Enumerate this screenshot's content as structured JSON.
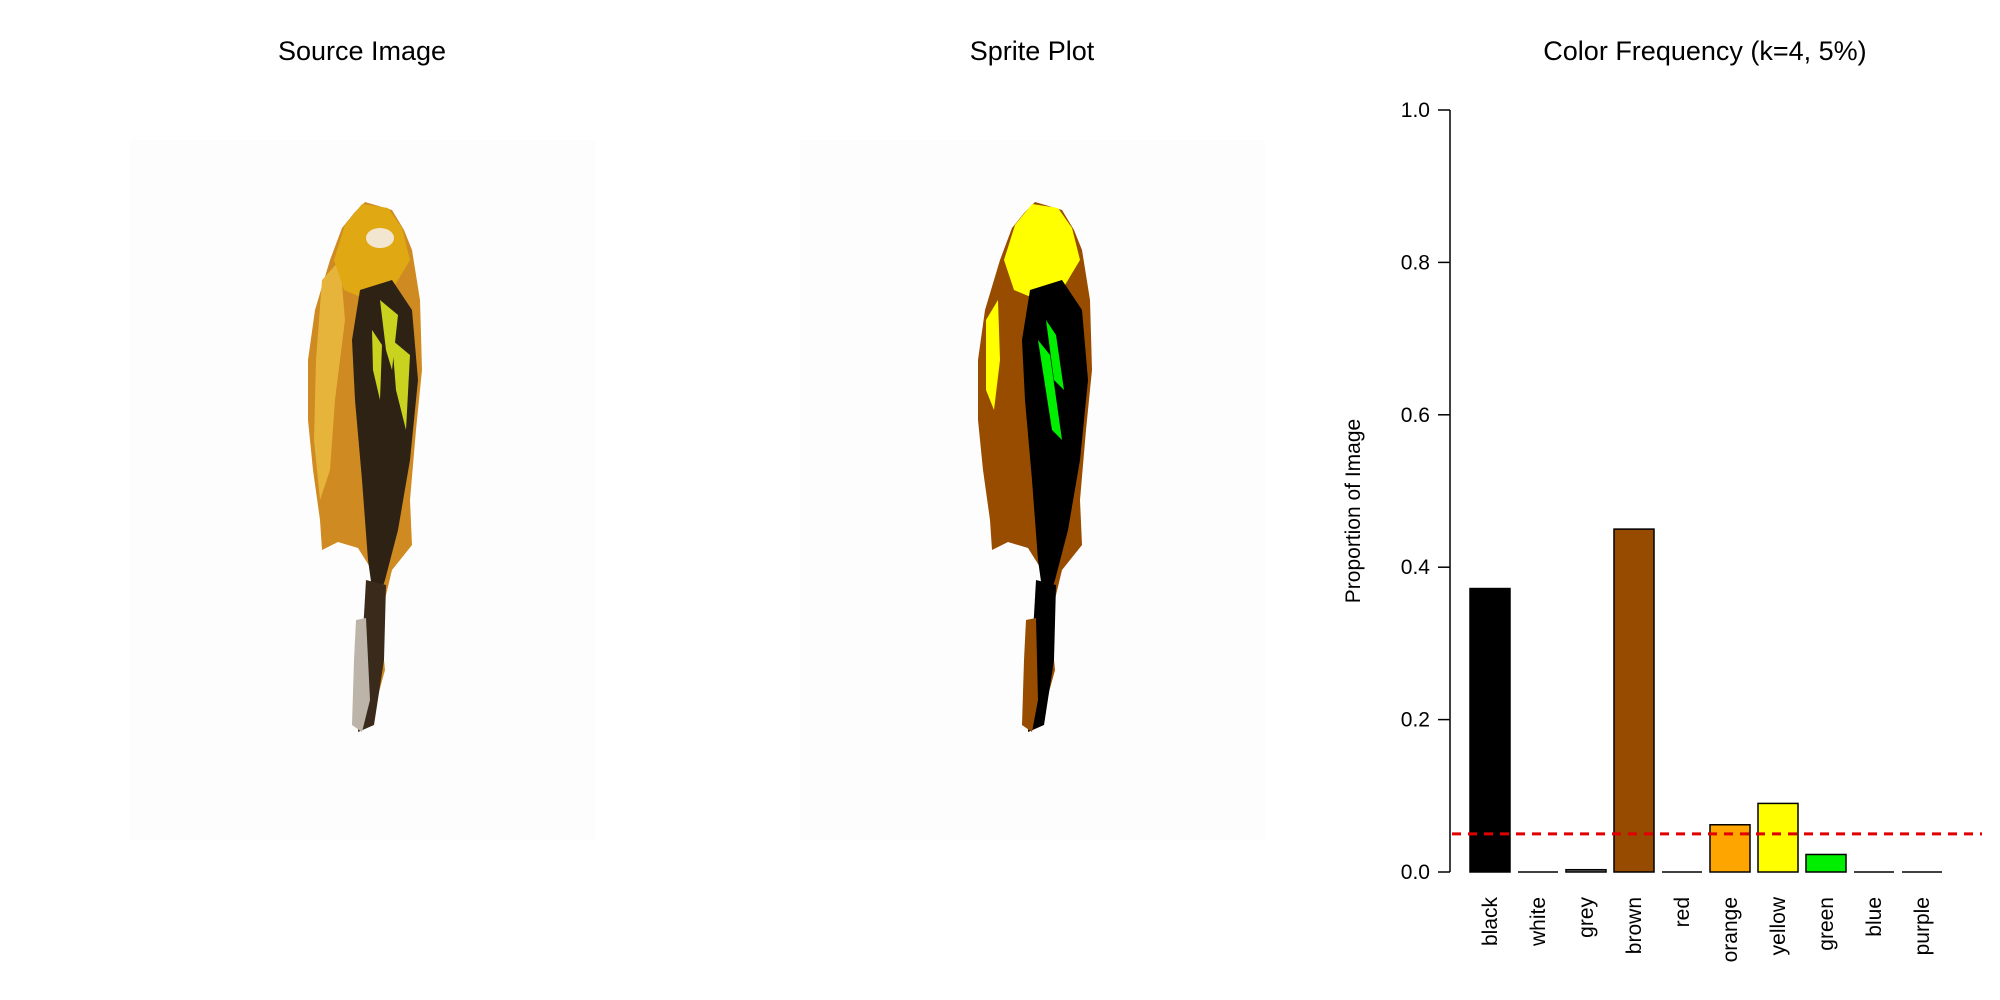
{
  "panels": {
    "source_title": "Source Image",
    "sprite_title": "Sprite Plot"
  },
  "source_palette": {
    "head": "#e0a914",
    "eye": "#f2e6d0",
    "breast": "#cf8a22",
    "breast_light": "#e6b43a",
    "wing": "#2e2214",
    "wing_streak": "#c9d21e",
    "tail": "#3a2a1c",
    "tail_light": "#bcb4a8"
  },
  "sprite_palette": {
    "head": "#ffff00",
    "breast": "#974c00",
    "wing": "#000000",
    "wing_streak": "#00ee00",
    "highlight": "#ffff00"
  },
  "chart_data": {
    "type": "bar",
    "title": "Color Frequency (k=4, 5%)",
    "ylabel": "Proportion of Image",
    "xlabel": "",
    "ylim": [
      0,
      1.0
    ],
    "yticks": [
      "0.0",
      "0.2",
      "0.4",
      "0.6",
      "0.8",
      "1.0"
    ],
    "threshold": 0.05,
    "threshold_color": "#e00000",
    "categories": [
      "black",
      "white",
      "grey",
      "brown",
      "red",
      "orange",
      "yellow",
      "green",
      "blue",
      "purple"
    ],
    "values": [
      0.372,
      0.0,
      0.003,
      0.45,
      0.0,
      0.062,
      0.09,
      0.023,
      0.0,
      0.0
    ],
    "colors": [
      "#000000",
      "#ffffff",
      "#808080",
      "#964b00",
      "#ff0000",
      "#ffa500",
      "#ffff00",
      "#00ee00",
      "#0000ff",
      "#a020f0"
    ],
    "grid": false,
    "legend": "none"
  }
}
